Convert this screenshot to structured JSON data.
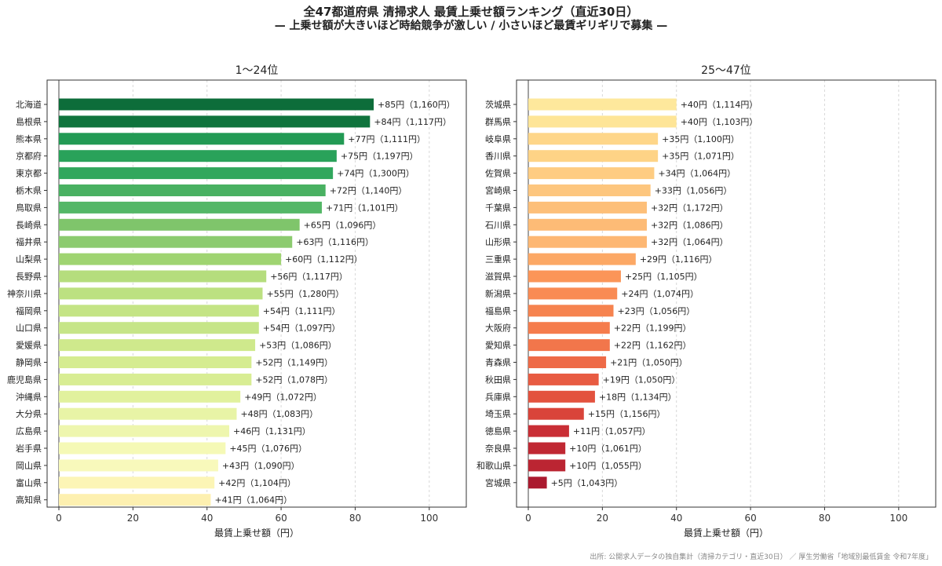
{
  "title": "全47都道府県 清掃求人 最賃上乗せ額ランキング（直近30日）",
  "subtitle": "— 上乗せ額が大きいほど時給競争が激しい / 小さいほど最賃ギリギリで募集 —",
  "source": "出所: 公開求人データの独自集計（清掃カテゴリ・直近30日） ／ 厚生労働省「地域別最低賃金 令和7年度」",
  "chart_data": [
    {
      "type": "bar",
      "orientation": "horizontal",
      "title": "1〜24位",
      "xlabel": "最賃上乗せ額（円）",
      "xlim": [
        0,
        110
      ],
      "xticks": [
        0,
        20,
        40,
        60,
        80,
        100
      ],
      "grid": "vertical-dashed",
      "colormap": "green-to-yellow",
      "categories": [
        "北海道",
        "島根県",
        "熊本県",
        "京都府",
        "東京都",
        "栃木県",
        "鳥取県",
        "長崎県",
        "福井県",
        "山梨県",
        "長野県",
        "神奈川県",
        "福岡県",
        "山口県",
        "愛媛県",
        "静岡県",
        "鹿児島県",
        "沖縄県",
        "大分県",
        "広島県",
        "岩手県",
        "岡山県",
        "富山県",
        "高知県"
      ],
      "values": [
        85,
        84,
        77,
        75,
        74,
        72,
        71,
        65,
        63,
        60,
        56,
        55,
        54,
        54,
        53,
        52,
        52,
        49,
        48,
        46,
        45,
        43,
        42,
        41
      ],
      "labels": [
        "+85円（1,160円）",
        "+84円（1,117円）",
        "+77円（1,111円）",
        "+75円（1,197円）",
        "+74円（1,300円）",
        "+72円（1,140円）",
        "+71円（1,101円）",
        "+65円（1,096円）",
        "+63円（1,116円）",
        "+60円（1,112円）",
        "+56円（1,117円）",
        "+55円（1,280円）",
        "+54円（1,111円）",
        "+54円（1,097円）",
        "+53円（1,086円）",
        "+52円（1,149円）",
        "+52円（1,078円）",
        "+49円（1,072円）",
        "+48円（1,083円）",
        "+46円（1,131円）",
        "+45円（1,076円）",
        "+43円（1,090円）",
        "+42円（1,104円）",
        "+41円（1,064円）"
      ],
      "colors": [
        "#0d6d3a",
        "#0f743d",
        "#229a54",
        "#29a25a",
        "#31a75d",
        "#49b162",
        "#54b767",
        "#7fc56b",
        "#8ccb6f",
        "#9fd471",
        "#b5dd7d",
        "#bce181",
        "#c4e485",
        "#c6e588",
        "#cfe98c",
        "#d5ec90",
        "#d8ed93",
        "#e1f19d",
        "#e8f4a6",
        "#eef6ae",
        "#f5f9b6",
        "#f8f9bb",
        "#fcf5b6",
        "#fdf0b0"
      ]
    },
    {
      "type": "bar",
      "orientation": "horizontal",
      "title": "25〜47位",
      "xlabel": "最賃上乗せ額（円）",
      "xlim": [
        0,
        110
      ],
      "xticks": [
        0,
        20,
        40,
        60,
        80,
        100
      ],
      "grid": "vertical-dashed",
      "colormap": "yellow-to-red",
      "categories": [
        "茨城県",
        "群馬県",
        "岐阜県",
        "香川県",
        "佐賀県",
        "宮崎県",
        "千葉県",
        "石川県",
        "山形県",
        "三重県",
        "滋賀県",
        "新潟県",
        "福島県",
        "大阪府",
        "愛知県",
        "青森県",
        "秋田県",
        "兵庫県",
        "埼玉県",
        "徳島県",
        "奈良県",
        "和歌山県",
        "宮城県"
      ],
      "values": [
        40,
        40,
        35,
        35,
        34,
        33,
        32,
        32,
        32,
        29,
        25,
        24,
        23,
        22,
        22,
        21,
        19,
        18,
        15,
        11,
        10,
        10,
        5
      ],
      "labels": [
        "+40円（1,114円）",
        "+40円（1,103円）",
        "+35円（1,100円）",
        "+35円（1,071円）",
        "+34円（1,064円）",
        "+33円（1,056円）",
        "+32円（1,172円）",
        "+32円（1,086円）",
        "+32円（1,064円）",
        "+29円（1,116円）",
        "+25円（1,105円）",
        "+24円（1,074円）",
        "+23円（1,056円）",
        "+22円（1,199円）",
        "+22円（1,162円）",
        "+21円（1,050円）",
        "+19円（1,050円）",
        "+18円（1,134円）",
        "+15円（1,156円）",
        "+11円（1,057円）",
        "+10円（1,061円）",
        "+10円（1,055円）",
        "+5円（1,043円）"
      ],
      "colors": [
        "#fee89c",
        "#fee597",
        "#fed689",
        "#fed386",
        "#fecc82",
        "#fdc67e",
        "#fdbf79",
        "#fdbb76",
        "#fdb773",
        "#fca865",
        "#fb9558",
        "#f98b54",
        "#f6834f",
        "#f57c4d",
        "#f2764b",
        "#ee6a47",
        "#e85b42",
        "#e3523e",
        "#d9443a",
        "#c92e35",
        "#c02833",
        "#bb2532",
        "#ab1a2f"
      ]
    }
  ]
}
